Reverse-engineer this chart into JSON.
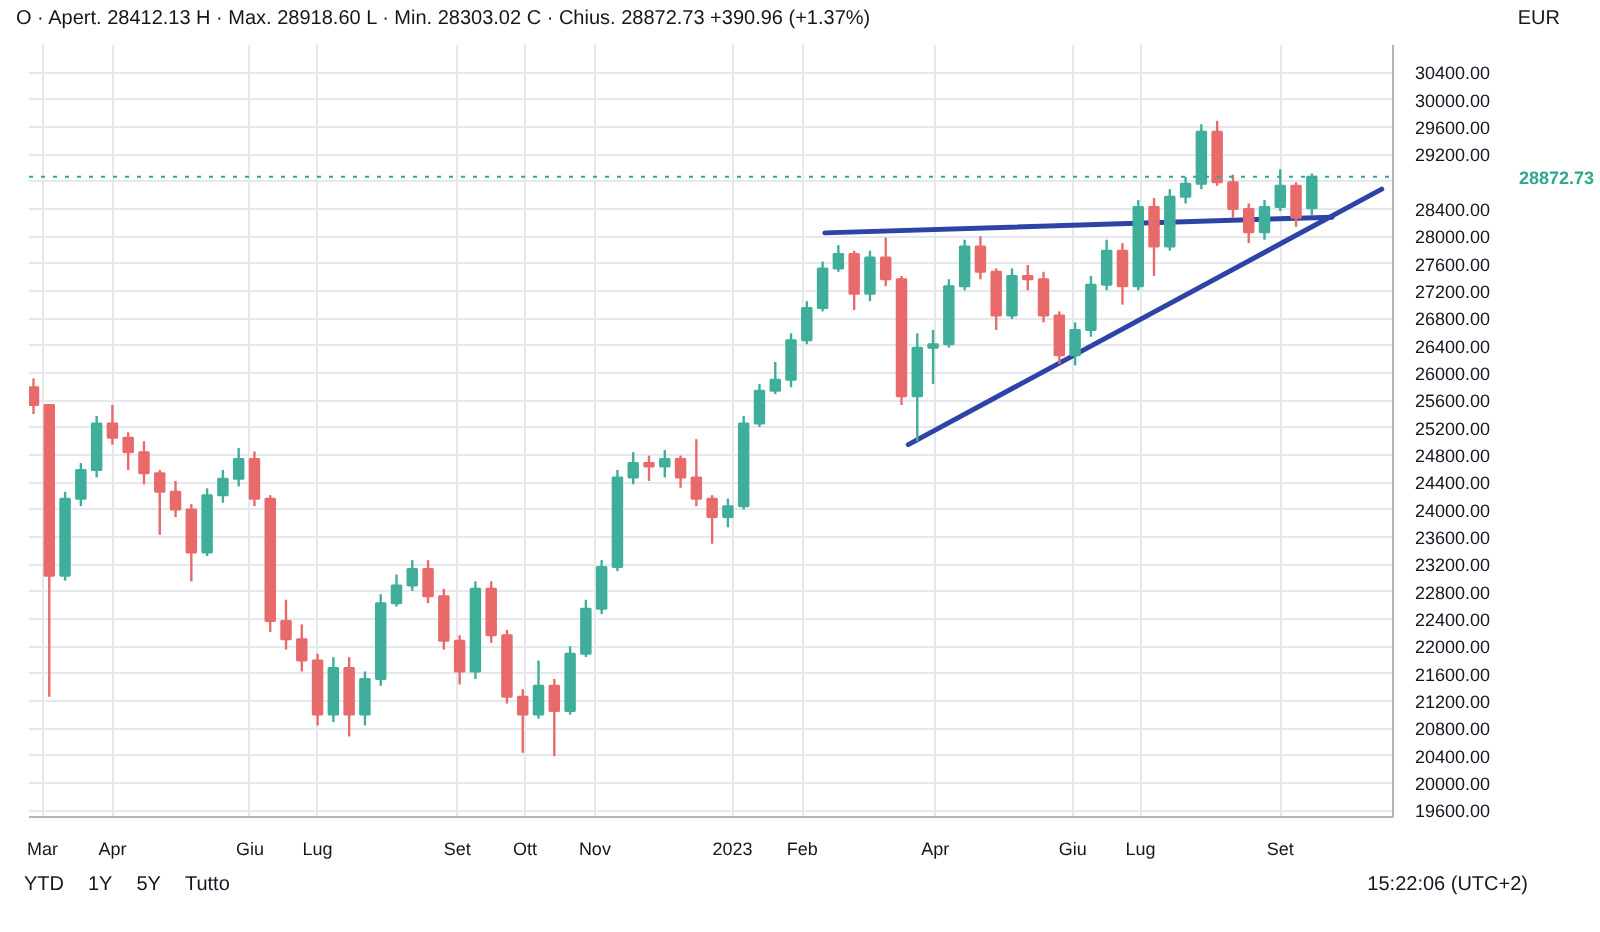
{
  "chart_data": {
    "type": "candlestick",
    "subtitle": "O · Apert. 28412.13 H · Max. 28918.60 L · Min. 28303.02 C · Chius. 28872.73 +390.96 (+1.37%)",
    "ylabel": "EUR",
    "x": [
      "2022-02-25",
      "2022-03-04",
      "2022-03-11",
      "2022-03-18",
      "2022-03-25",
      "2022-04-01",
      "2022-04-08",
      "2022-04-15",
      "2022-04-22",
      "2022-04-29",
      "2022-05-06",
      "2022-05-13",
      "2022-05-20",
      "2022-05-27",
      "2022-06-03",
      "2022-06-10",
      "2022-06-17",
      "2022-06-24",
      "2022-07-01",
      "2022-07-08",
      "2022-07-15",
      "2022-07-22",
      "2022-07-29",
      "2022-08-05",
      "2022-08-12",
      "2022-08-19",
      "2022-08-26",
      "2022-09-02",
      "2022-09-09",
      "2022-09-16",
      "2022-09-23",
      "2022-09-30",
      "2022-10-07",
      "2022-10-14",
      "2022-10-21",
      "2022-10-28",
      "2022-11-04",
      "2022-11-11",
      "2022-11-18",
      "2022-11-25",
      "2022-12-02",
      "2022-12-09",
      "2022-12-16",
      "2022-12-23",
      "2022-12-30",
      "2023-01-06",
      "2023-01-13",
      "2023-01-20",
      "2023-01-27",
      "2023-02-03",
      "2023-02-10",
      "2023-02-17",
      "2023-02-24",
      "2023-03-03",
      "2023-03-10",
      "2023-03-17",
      "2023-03-24",
      "2023-03-31",
      "2023-04-07",
      "2023-04-14",
      "2023-04-21",
      "2023-04-28",
      "2023-05-05",
      "2023-05-12",
      "2023-05-19",
      "2023-05-26",
      "2023-06-02",
      "2023-06-09",
      "2023-06-16",
      "2023-06-23",
      "2023-06-30",
      "2023-07-07",
      "2023-07-14",
      "2023-07-21",
      "2023-07-28",
      "2023-08-04",
      "2023-08-11",
      "2023-08-18",
      "2023-08-25",
      "2023-09-01",
      "2023-09-08",
      "2023-09-15"
    ],
    "ohlc": [
      [
        25790,
        25920,
        25400,
        25530
      ],
      [
        25530,
        25530,
        21260,
        23030
      ],
      [
        23030,
        24260,
        22960,
        24160
      ],
      [
        24160,
        24680,
        24050,
        24580
      ],
      [
        24580,
        25370,
        24470,
        25260
      ],
      [
        25260,
        25530,
        24950,
        25050
      ],
      [
        25050,
        25130,
        24580,
        24840
      ],
      [
        24840,
        25000,
        24370,
        24530
      ],
      [
        24530,
        24580,
        23630,
        24260
      ],
      [
        24260,
        24420,
        23890,
        24000
      ],
      [
        24000,
        24080,
        22950,
        23370
      ],
      [
        23370,
        24310,
        23320,
        24210
      ],
      [
        24210,
        24580,
        24100,
        24450
      ],
      [
        24450,
        24900,
        24340,
        24740
      ],
      [
        24740,
        24850,
        24050,
        24160
      ],
      [
        24160,
        24210,
        22210,
        22370
      ],
      [
        22370,
        22680,
        21950,
        22100
      ],
      [
        22100,
        22320,
        21630,
        21790
      ],
      [
        21790,
        21890,
        20840,
        21000
      ],
      [
        21000,
        21840,
        20890,
        21680
      ],
      [
        21680,
        21840,
        20680,
        21000
      ],
      [
        21000,
        21630,
        20840,
        21520
      ],
      [
        21520,
        22760,
        21420,
        22630
      ],
      [
        22630,
        23050,
        22580,
        22890
      ],
      [
        22890,
        23260,
        22810,
        23130
      ],
      [
        23130,
        23260,
        22630,
        22730
      ],
      [
        22730,
        22840,
        21950,
        22080
      ],
      [
        22080,
        22160,
        21440,
        21630
      ],
      [
        21630,
        22950,
        21520,
        22840
      ],
      [
        22840,
        22950,
        22050,
        22160
      ],
      [
        22160,
        22240,
        21160,
        21260
      ],
      [
        21260,
        21370,
        20440,
        21000
      ],
      [
        21000,
        21790,
        20940,
        21420
      ],
      [
        21420,
        21520,
        20390,
        21050
      ],
      [
        21050,
        22000,
        21000,
        21890
      ],
      [
        21890,
        22680,
        21840,
        22550
      ],
      [
        22550,
        23260,
        22470,
        23160
      ],
      [
        23160,
        24580,
        23100,
        24470
      ],
      [
        24470,
        24840,
        24370,
        24680
      ],
      [
        24680,
        24790,
        24420,
        24630
      ],
      [
        24630,
        24870,
        24470,
        24740
      ],
      [
        24740,
        24790,
        24320,
        24470
      ],
      [
        24470,
        25030,
        24050,
        24160
      ],
      [
        24160,
        24210,
        23500,
        23890
      ],
      [
        23890,
        24160,
        23740,
        24050
      ],
      [
        24050,
        25370,
        24000,
        25260
      ],
      [
        25260,
        25840,
        25210,
        25740
      ],
      [
        25740,
        26160,
        25690,
        25900
      ],
      [
        25900,
        26580,
        25790,
        26480
      ],
      [
        26480,
        27050,
        26420,
        26950
      ],
      [
        26950,
        27630,
        26900,
        27530
      ],
      [
        27530,
        27870,
        27480,
        27740
      ],
      [
        27740,
        27790,
        26920,
        27160
      ],
      [
        27160,
        27790,
        27050,
        27690
      ],
      [
        27690,
        27980,
        27270,
        27370
      ],
      [
        27370,
        27420,
        25530,
        25660
      ],
      [
        25660,
        26580,
        25000,
        26370
      ],
      [
        26370,
        26630,
        25840,
        26420
      ],
      [
        26420,
        27370,
        26370,
        27270
      ],
      [
        27270,
        27950,
        27210,
        27850
      ],
      [
        27850,
        28000,
        27370,
        27480
      ],
      [
        27480,
        27530,
        26630,
        26840
      ],
      [
        26840,
        27530,
        26790,
        27420
      ],
      [
        27420,
        27580,
        27210,
        27370
      ],
      [
        27370,
        27480,
        26740,
        26840
      ],
      [
        26840,
        26900,
        26130,
        26260
      ],
      [
        26260,
        26740,
        26110,
        26630
      ],
      [
        26630,
        27420,
        26530,
        27290
      ],
      [
        27290,
        27950,
        27210,
        27790
      ],
      [
        27790,
        27900,
        27000,
        27270
      ],
      [
        27270,
        28530,
        27210,
        28430
      ],
      [
        28430,
        28560,
        27420,
        27850
      ],
      [
        27850,
        28690,
        27790,
        28580
      ],
      [
        28580,
        28870,
        28480,
        28770
      ],
      [
        28770,
        29640,
        28690,
        29530
      ],
      [
        29530,
        29690,
        28740,
        28790
      ],
      [
        28790,
        28900,
        28270,
        28400
      ],
      [
        28400,
        28480,
        27900,
        28060
      ],
      [
        28060,
        28530,
        27950,
        28430
      ],
      [
        28430,
        28980,
        28370,
        28740
      ],
      [
        28740,
        28790,
        28140,
        28270
      ],
      [
        28412.13,
        28918.6,
        28303.02,
        28872.73
      ]
    ],
    "colors": [
      "#e86a6a",
      "#e86a6a",
      "#3fae9a",
      "#3fae9a",
      "#3fae9a",
      "#e86a6a",
      "#e86a6a",
      "#e86a6a",
      "#e86a6a",
      "#e86a6a",
      "#e86a6a",
      "#3fae9a",
      "#3fae9a",
      "#3fae9a",
      "#e86a6a",
      "#e86a6a",
      "#e86a6a",
      "#e86a6a",
      "#e86a6a",
      "#3fae9a",
      "#e86a6a",
      "#3fae9a",
      "#3fae9a",
      "#3fae9a",
      "#3fae9a",
      "#e86a6a",
      "#e86a6a",
      "#e86a6a",
      "#3fae9a",
      "#e86a6a",
      "#e86a6a",
      "#e86a6a",
      "#3fae9a",
      "#e86a6a",
      "#3fae9a",
      "#3fae9a",
      "#3fae9a",
      "#3fae9a",
      "#3fae9a",
      "#e86a6a",
      "#3fae9a",
      "#e86a6a",
      "#e86a6a",
      "#e86a6a",
      "#3fae9a",
      "#3fae9a",
      "#3fae9a",
      "#3fae9a",
      "#3fae9a",
      "#3fae9a",
      "#3fae9a",
      "#3fae9a",
      "#e86a6a",
      "#3fae9a",
      "#e86a6a",
      "#e86a6a",
      "#3fae9a",
      "#3fae9a",
      "#3fae9a",
      "#3fae9a",
      "#e86a6a",
      "#e86a6a",
      "#3fae9a",
      "#e86a6a",
      "#e86a6a",
      "#e86a6a",
      "#3fae9a",
      "#3fae9a",
      "#3fae9a",
      "#e86a6a",
      "#3fae9a",
      "#e86a6a",
      "#3fae9a",
      "#3fae9a",
      "#3fae9a",
      "#e86a6a",
      "#e86a6a",
      "#e86a6a",
      "#3fae9a",
      "#3fae9a",
      "#e86a6a",
      "#3fae9a"
    ],
    "series": [
      {
        "type": "line",
        "color": "#2e43a6",
        "x": [
          "2023-02-11",
          "2023-09-24"
        ],
        "values": [
          28050,
          28280
        ]
      },
      {
        "type": "line",
        "color": "#2e43a6",
        "x": [
          "2023-03-20",
          "2023-10-16"
        ],
        "values": [
          24950,
          28690
        ]
      }
    ],
    "xlim": [
      "2022-02-23",
      "2023-10-21"
    ],
    "xticks": [
      {
        "value": "2022-03-01",
        "label": "Mar"
      },
      {
        "value": "2022-04-01",
        "label": "Apr"
      },
      {
        "value": "2022-06-01",
        "label": "Giu"
      },
      {
        "value": "2022-07-01",
        "label": "Lug"
      },
      {
        "value": "2022-09-01",
        "label": "Set"
      },
      {
        "value": "2022-10-01",
        "label": "Ott"
      },
      {
        "value": "2022-11-01",
        "label": "Nov"
      },
      {
        "value": "2023-01-01",
        "label": "2023"
      },
      {
        "value": "2023-02-01",
        "label": "Feb"
      },
      {
        "value": "2023-04-01",
        "label": "Apr"
      },
      {
        "value": "2023-06-01",
        "label": "Giu"
      },
      {
        "value": "2023-07-01",
        "label": "Lug"
      },
      {
        "value": "2023-09-01",
        "label": "Set"
      }
    ],
    "ylim": [
      19500,
      30800
    ],
    "yticks": [
      {
        "value": 19600,
        "label": "19600.00"
      },
      {
        "value": 20000,
        "label": "20000.00"
      },
      {
        "value": 20400,
        "label": "20400.00"
      },
      {
        "value": 20800,
        "label": "20800.00"
      },
      {
        "value": 21200,
        "label": "21200.00"
      },
      {
        "value": 21600,
        "label": "21600.00"
      },
      {
        "value": 22000,
        "label": "22000.00"
      },
      {
        "value": 22400,
        "label": "22400.00"
      },
      {
        "value": 22800,
        "label": "22800.00"
      },
      {
        "value": 23200,
        "label": "23200.00"
      },
      {
        "value": 23600,
        "label": "23600.00"
      },
      {
        "value": 24000,
        "label": "24000.00"
      },
      {
        "value": 24400,
        "label": "24400.00"
      },
      {
        "value": 24800,
        "label": "24800.00"
      },
      {
        "value": 25200,
        "label": "25200.00"
      },
      {
        "value": 25600,
        "label": "25600.00"
      },
      {
        "value": 26000,
        "label": "26000.00"
      },
      {
        "value": 26400,
        "label": "26400.00"
      },
      {
        "value": 26800,
        "label": "26800.00"
      },
      {
        "value": 27200,
        "label": "27200.00"
      },
      {
        "value": 27600,
        "label": "27600.00"
      },
      {
        "value": 28000,
        "label": "28000.00"
      },
      {
        "value": 28400,
        "label": "28400.00"
      },
      {
        "value": 28800,
        "label": null
      },
      {
        "value": 29200,
        "label": "29200.00"
      },
      {
        "value": 29600,
        "label": "29600.00"
      },
      {
        "value": 30000,
        "label": "30000.00"
      },
      {
        "value": 30400,
        "label": "30400.00"
      }
    ],
    "ref_lines": [
      {
        "axis": "y",
        "value": 28872.73,
        "label": "28872.73",
        "color": "#34a88f",
        "line_style": "dotted"
      }
    ],
    "grid": true,
    "annotations": [
      "YTD",
      "1Y",
      "5Y",
      "Tutto",
      "15:22:06 (UTC+2)"
    ]
  }
}
